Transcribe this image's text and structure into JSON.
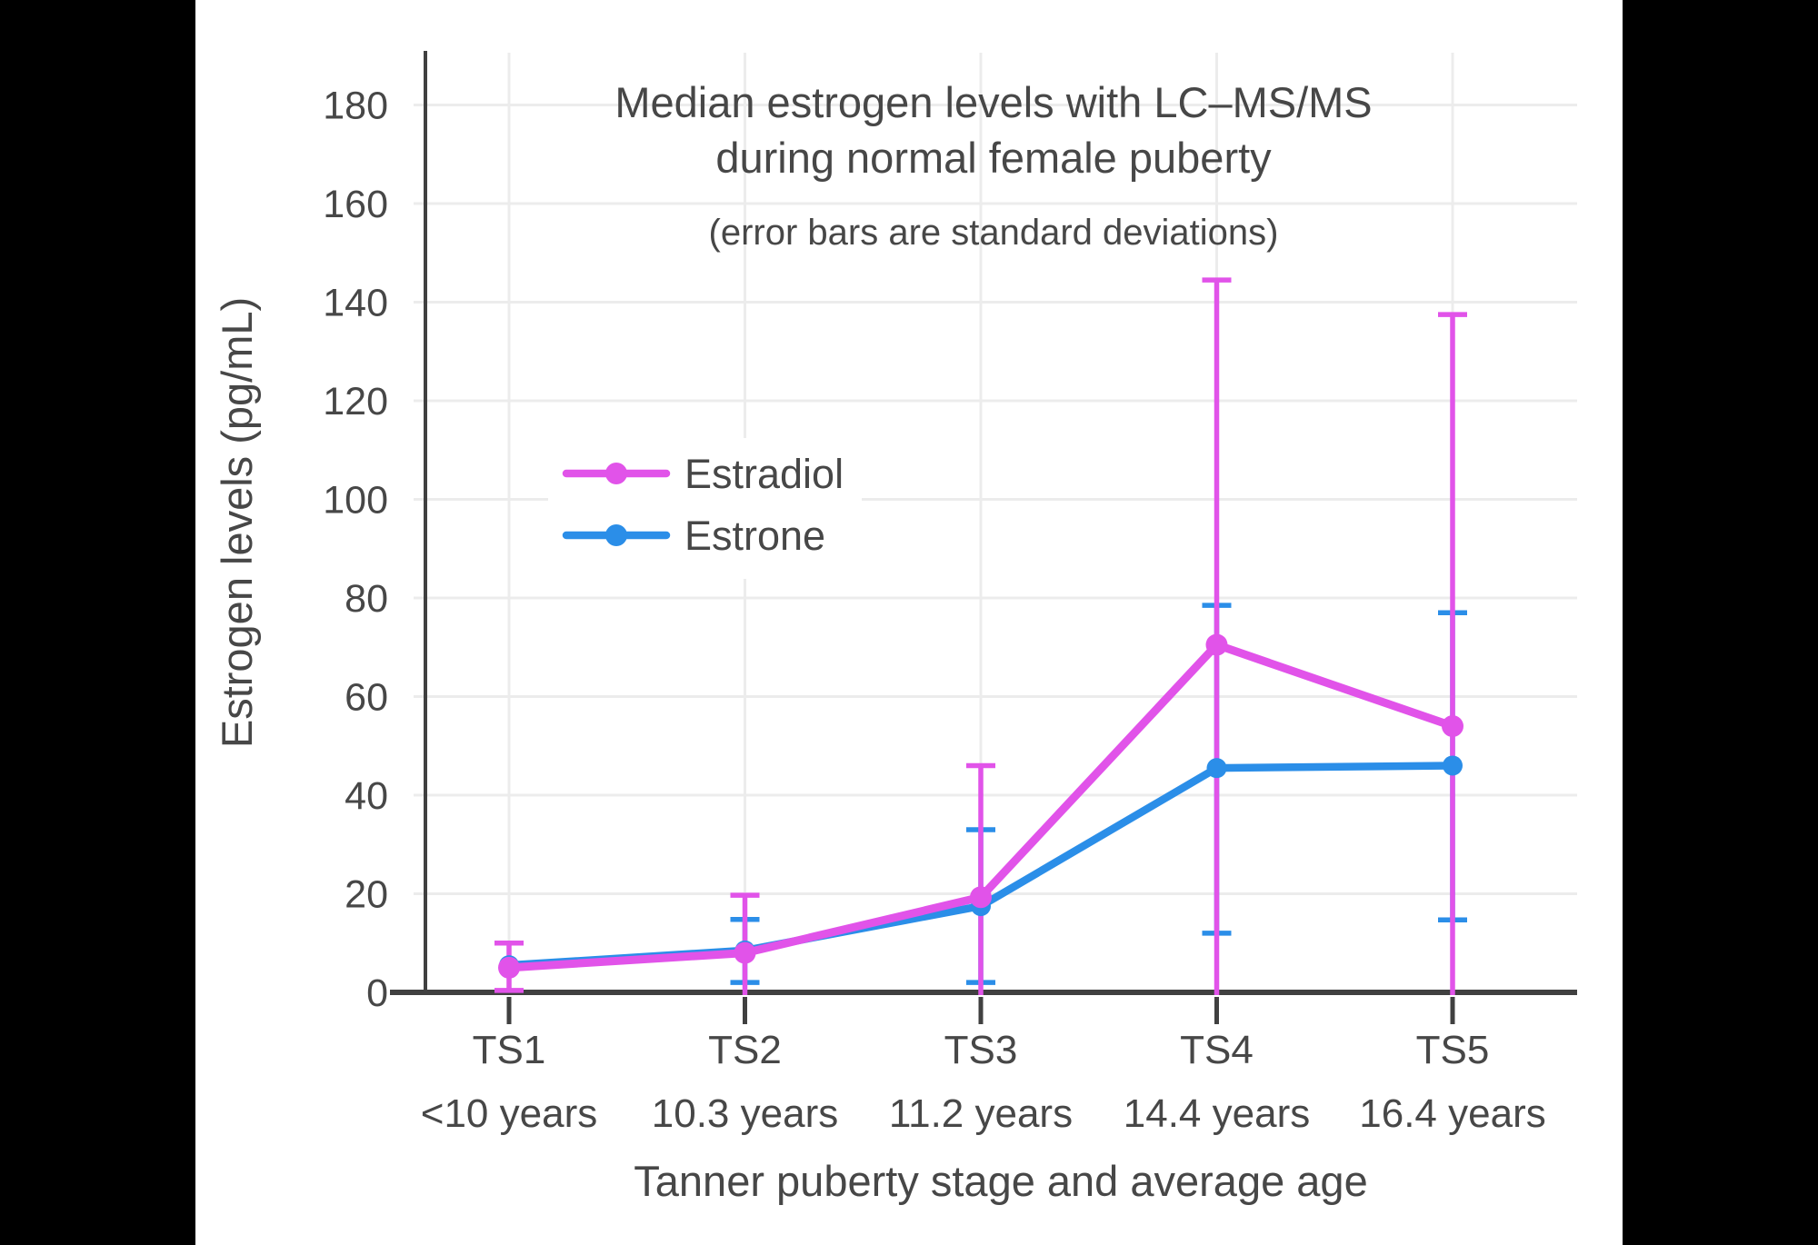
{
  "page": {
    "background_color": "#000000",
    "panel_color": "#ffffff"
  },
  "colors": {
    "estradiol": "#e153e9",
    "estrone": "#2b8ee8",
    "axis": "#404040",
    "grid": "#ececec",
    "text": "#474747"
  },
  "chart_data": {
    "type": "line",
    "title_line1": "Median estrogen levels with LC–MS/MS",
    "title_line2": "during normal female puberty",
    "subtitle": "(error bars are standard deviations)",
    "xlabel": "Tanner puberty stage and average age",
    "ylabel": "Estrogen levels (pg/mL)",
    "categories": [
      "TS1",
      "TS2",
      "TS3",
      "TS4",
      "TS5"
    ],
    "category_ages": [
      "<10 years",
      "10.3 years",
      "11.2 years",
      "14.4 years",
      "16.4 years"
    ],
    "y_ticks": [
      0,
      20,
      40,
      60,
      80,
      100,
      120,
      140,
      160,
      180
    ],
    "ylim": [
      0,
      190
    ],
    "grid": true,
    "legend_position": "inside-upper-left",
    "error_bar_meaning": "standard deviations",
    "series": [
      {
        "name": "Estradiol",
        "color": "#e153e9",
        "values": [
          5,
          8,
          19.3,
          70.5,
          54
        ],
        "error_high": [
          10,
          19.7,
          46,
          144.5,
          137.5
        ],
        "error_low": [
          0.4,
          null,
          null,
          null,
          null
        ],
        "note_error_low_null": "bar extends below 0 and is clipped at the axis with no cap"
      },
      {
        "name": "Estrone",
        "color": "#2b8ee8",
        "values": [
          5.5,
          8.5,
          17.5,
          45.5,
          46
        ],
        "error_high": [
          null,
          14.8,
          33,
          78.5,
          77
        ],
        "error_low": [
          null,
          2,
          2,
          12,
          14.7
        ],
        "note_error_high_null": "no error bar shown at this stage"
      }
    ]
  }
}
